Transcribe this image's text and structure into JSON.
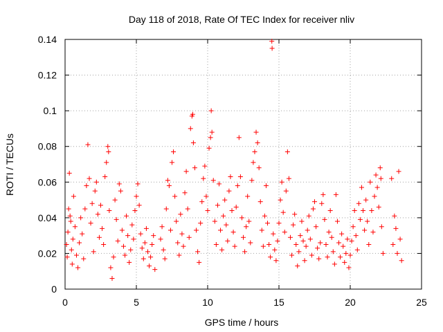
{
  "chart_data": {
    "type": "scatter",
    "title": "Day 118 of 2018, Rate Of TEC Index for receiver nliv",
    "xlabel": "GPS time / hours",
    "ylabel": "ROTI / TECUs",
    "xlim": [
      0,
      25
    ],
    "ylim": [
      0,
      0.14
    ],
    "xticks": [
      0,
      5,
      10,
      15,
      20,
      25
    ],
    "yticks": [
      0,
      0.02,
      0.04,
      0.06,
      0.08,
      0.1,
      0.12,
      0.14
    ],
    "xtick_labels": [
      "0",
      "5",
      "10",
      "15",
      "20",
      "25"
    ],
    "ytick_labels": [
      "0",
      "0.02",
      "0.04",
      "0.06",
      "0.08",
      "0.1",
      "0.12",
      "0.14"
    ],
    "grid": true,
    "marker": "+",
    "color": "#ff0000",
    "series": [
      {
        "name": "ROTI",
        "points": [
          [
            0.1,
            0.025
          ],
          [
            0.15,
            0.018
          ],
          [
            0.2,
            0.032
          ],
          [
            0.25,
            0.045
          ],
          [
            0.3,
            0.065
          ],
          [
            0.35,
            0.041
          ],
          [
            0.4,
            0.038
          ],
          [
            0.45,
            0.022
          ],
          [
            0.5,
            0.014
          ],
          [
            0.55,
            0.028
          ],
          [
            0.6,
            0.052
          ],
          [
            0.7,
            0.035
          ],
          [
            0.8,
            0.019
          ],
          [
            0.9,
            0.012
          ],
          [
            1.0,
            0.026
          ],
          [
            1.1,
            0.04
          ],
          [
            1.2,
            0.031
          ],
          [
            1.3,
            0.017
          ],
          [
            1.4,
            0.045
          ],
          [
            1.5,
            0.058
          ],
          [
            1.6,
            0.081
          ],
          [
            1.7,
            0.062
          ],
          [
            1.8,
            0.037
          ],
          [
            1.9,
            0.048
          ],
          [
            2.0,
            0.021
          ],
          [
            2.1,
            0.055
          ],
          [
            2.2,
            0.06
          ],
          [
            2.3,
            0.042
          ],
          [
            2.4,
            0.029
          ],
          [
            2.5,
            0.047
          ],
          [
            2.6,
            0.034
          ],
          [
            2.7,
            0.025
          ],
          [
            2.8,
            0.063
          ],
          [
            2.9,
            0.071
          ],
          [
            3.0,
            0.08
          ],
          [
            3.05,
            0.077
          ],
          [
            3.1,
            0.044
          ],
          [
            3.2,
            0.012
          ],
          [
            3.3,
            0.006
          ],
          [
            3.4,
            0.018
          ],
          [
            3.5,
            0.05
          ],
          [
            3.6,
            0.039
          ],
          [
            3.7,
            0.027
          ],
          [
            3.8,
            0.059
          ],
          [
            3.9,
            0.055
          ],
          [
            4.0,
            0.033
          ],
          [
            4.1,
            0.024
          ],
          [
            4.2,
            0.019
          ],
          [
            4.3,
            0.041
          ],
          [
            4.4,
            0.03
          ],
          [
            4.5,
            0.015
          ],
          [
            4.6,
            0.022
          ],
          [
            4.7,
            0.036
          ],
          [
            4.8,
            0.028
          ],
          [
            4.9,
            0.044
          ],
          [
            5.0,
            0.052
          ],
          [
            5.1,
            0.059
          ],
          [
            5.2,
            0.047
          ],
          [
            5.3,
            0.031
          ],
          [
            5.4,
            0.023
          ],
          [
            5.5,
            0.017
          ],
          [
            5.6,
            0.026
          ],
          [
            5.7,
            0.034
          ],
          [
            5.8,
            0.021
          ],
          [
            5.9,
            0.013
          ],
          [
            6.0,
            0.018
          ],
          [
            6.1,
            0.025
          ],
          [
            6.2,
            0.03
          ],
          [
            6.3,
            0.011
          ],
          [
            6.7,
            0.028
          ],
          [
            6.8,
            0.035
          ],
          [
            6.9,
            0.022
          ],
          [
            7.0,
            0.017
          ],
          [
            7.1,
            0.045
          ],
          [
            7.2,
            0.061
          ],
          [
            7.3,
            0.058
          ],
          [
            7.4,
            0.033
          ],
          [
            7.5,
            0.071
          ],
          [
            7.6,
            0.077
          ],
          [
            7.7,
            0.052
          ],
          [
            7.8,
            0.038
          ],
          [
            7.9,
            0.026
          ],
          [
            8.0,
            0.019
          ],
          [
            8.1,
            0.042
          ],
          [
            8.2,
            0.031
          ],
          [
            8.3,
            0.024
          ],
          [
            8.4,
            0.054
          ],
          [
            8.5,
            0.066
          ],
          [
            8.6,
            0.045
          ],
          [
            8.7,
            0.029
          ],
          [
            8.8,
            0.09
          ],
          [
            8.9,
            0.097
          ],
          [
            8.95,
            0.098
          ],
          [
            9.0,
            0.082
          ],
          [
            9.1,
            0.068
          ],
          [
            9.2,
            0.033
          ],
          [
            9.3,
            0.021
          ],
          [
            9.4,
            0.015
          ],
          [
            9.5,
            0.037
          ],
          [
            9.6,
            0.049
          ],
          [
            9.7,
            0.062
          ],
          [
            9.8,
            0.069
          ],
          [
            9.9,
            0.052
          ],
          [
            10.0,
            0.044
          ],
          [
            10.1,
            0.079
          ],
          [
            10.2,
            0.085
          ],
          [
            10.25,
            0.1
          ],
          [
            10.3,
            0.088
          ],
          [
            10.4,
            0.061
          ],
          [
            10.5,
            0.038
          ],
          [
            10.6,
            0.025
          ],
          [
            10.7,
            0.047
          ],
          [
            10.8,
            0.059
          ],
          [
            10.9,
            0.033
          ],
          [
            11.0,
            0.022
          ],
          [
            11.1,
            0.041
          ],
          [
            11.2,
            0.05
          ],
          [
            11.3,
            0.036
          ],
          [
            11.4,
            0.027
          ],
          [
            11.5,
            0.055
          ],
          [
            11.6,
            0.063
          ],
          [
            11.7,
            0.044
          ],
          [
            11.8,
            0.032
          ],
          [
            11.9,
            0.024
          ],
          [
            12.0,
            0.046
          ],
          [
            12.1,
            0.058
          ],
          [
            12.2,
            0.085
          ],
          [
            12.3,
            0.063
          ],
          [
            12.4,
            0.04
          ],
          [
            12.5,
            0.029
          ],
          [
            12.6,
            0.021
          ],
          [
            12.7,
            0.035
          ],
          [
            12.8,
            0.052
          ],
          [
            12.9,
            0.038
          ],
          [
            13.0,
            0.026
          ],
          [
            13.1,
            0.061
          ],
          [
            13.2,
            0.071
          ],
          [
            13.3,
            0.077
          ],
          [
            13.4,
            0.088
          ],
          [
            13.5,
            0.082
          ],
          [
            13.6,
            0.068
          ],
          [
            13.7,
            0.049
          ],
          [
            13.8,
            0.033
          ],
          [
            13.9,
            0.024
          ],
          [
            14.0,
            0.041
          ],
          [
            14.1,
            0.058
          ],
          [
            14.2,
            0.037
          ],
          [
            14.3,
            0.025
          ],
          [
            14.4,
            0.018
          ],
          [
            14.5,
            0.139
          ],
          [
            14.52,
            0.135
          ],
          [
            14.6,
            0.031
          ],
          [
            14.7,
            0.022
          ],
          [
            14.8,
            0.016
          ],
          [
            14.9,
            0.027
          ],
          [
            15.0,
            0.037
          ],
          [
            15.1,
            0.05
          ],
          [
            15.2,
            0.06
          ],
          [
            15.3,
            0.043
          ],
          [
            15.4,
            0.032
          ],
          [
            15.5,
            0.055
          ],
          [
            15.6,
            0.077
          ],
          [
            15.7,
            0.062
          ],
          [
            15.8,
            0.029
          ],
          [
            15.9,
            0.019
          ],
          [
            16.0,
            0.036
          ],
          [
            16.1,
            0.042
          ],
          [
            16.2,
            0.025
          ],
          [
            16.3,
            0.013
          ],
          [
            16.4,
            0.021
          ],
          [
            16.5,
            0.03
          ],
          [
            16.6,
            0.038
          ],
          [
            16.7,
            0.027
          ],
          [
            16.8,
            0.016
          ],
          [
            16.9,
            0.024
          ],
          [
            17.0,
            0.033
          ],
          [
            17.1,
            0.041
          ],
          [
            17.2,
            0.028
          ],
          [
            17.3,
            0.019
          ],
          [
            17.4,
            0.045
          ],
          [
            17.5,
            0.049
          ],
          [
            17.6,
            0.035
          ],
          [
            17.7,
            0.023
          ],
          [
            17.8,
            0.017
          ],
          [
            17.9,
            0.026
          ],
          [
            18.0,
            0.048
          ],
          [
            18.1,
            0.053
          ],
          [
            18.2,
            0.039
          ],
          [
            18.3,
            0.025
          ],
          [
            18.4,
            0.018
          ],
          [
            18.5,
            0.032
          ],
          [
            18.6,
            0.044
          ],
          [
            18.7,
            0.029
          ],
          [
            18.8,
            0.021
          ],
          [
            18.9,
            0.014
          ],
          [
            19.0,
            0.053
          ],
          [
            19.1,
            0.038
          ],
          [
            19.2,
            0.026
          ],
          [
            19.3,
            0.018
          ],
          [
            19.4,
            0.031
          ],
          [
            19.5,
            0.024
          ],
          [
            19.6,
            0.015
          ],
          [
            19.7,
            0.02
          ],
          [
            19.8,
            0.028
          ],
          [
            19.9,
            0.012
          ],
          [
            20.0,
            0.019
          ],
          [
            20.1,
            0.027
          ],
          [
            20.2,
            0.035
          ],
          [
            20.3,
            0.044
          ],
          [
            20.4,
            0.03
          ],
          [
            20.5,
            0.022
          ],
          [
            20.6,
            0.048
          ],
          [
            20.7,
            0.039
          ],
          [
            20.8,
            0.057
          ],
          [
            20.9,
            0.044
          ],
          [
            21.0,
            0.033
          ],
          [
            21.1,
            0.05
          ],
          [
            21.2,
            0.038
          ],
          [
            21.3,
            0.025
          ],
          [
            21.4,
            0.06
          ],
          [
            21.5,
            0.044
          ],
          [
            21.6,
            0.032
          ],
          [
            21.7,
            0.052
          ],
          [
            21.8,
            0.064
          ],
          [
            21.9,
            0.057
          ],
          [
            22.0,
            0.046
          ],
          [
            22.1,
            0.068
          ],
          [
            22.15,
            0.062
          ],
          [
            22.2,
            0.035
          ],
          [
            22.3,
            0.02
          ],
          [
            22.9,
            0.062
          ],
          [
            23.0,
            0.025
          ],
          [
            23.1,
            0.041
          ],
          [
            23.2,
            0.034
          ],
          [
            23.3,
            0.02
          ],
          [
            23.4,
            0.066
          ],
          [
            23.5,
            0.028
          ],
          [
            23.6,
            0.016
          ]
        ]
      }
    ]
  }
}
